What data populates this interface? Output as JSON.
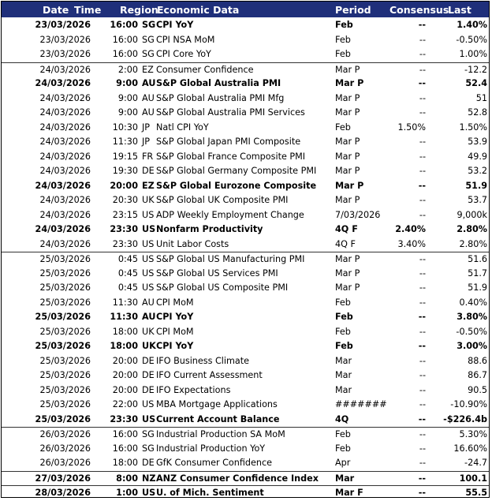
{
  "headers": {
    "date": "Date",
    "time": "Time",
    "region": "Region",
    "desc": "Economic Data",
    "period": "Period",
    "consensus": "Consensus",
    "last": "Last"
  },
  "rows": [
    {
      "date": "23/03/2026",
      "time": "16:00",
      "region": "SG",
      "desc": "CPI YoY",
      "period": "Feb",
      "cons": "--",
      "last": "1.40%",
      "bold": true
    },
    {
      "date": "23/03/2026",
      "time": "16:00",
      "region": "SG",
      "desc": "CPI NSA MoM",
      "period": "Feb",
      "cons": "--",
      "last": "-0.50%",
      "bold": false
    },
    {
      "date": "23/03/2026",
      "time": "16:00",
      "region": "SG",
      "desc": "CPI Core YoY",
      "period": "Feb",
      "cons": "--",
      "last": "1.00%",
      "bold": false
    },
    {
      "date": "24/03/2026",
      "time": "2:00",
      "region": "EZ",
      "desc": "Consumer Confidence",
      "period": "Mar P",
      "cons": "--",
      "last": "-12.2",
      "bold": false
    },
    {
      "date": "24/03/2026",
      "time": "9:00",
      "region": "AU",
      "desc": "S&P Global Australia PMI",
      "period": "Mar P",
      "cons": "--",
      "last": "52.4",
      "bold": true
    },
    {
      "date": "24/03/2026",
      "time": "9:00",
      "region": "AU",
      "desc": "S&P Global Australia PMI Mfg",
      "period": "Mar P",
      "cons": "--",
      "last": "51",
      "bold": false
    },
    {
      "date": "24/03/2026",
      "time": "9:00",
      "region": "AU",
      "desc": "S&P Global Australia PMI Services",
      "period": "Mar P",
      "cons": "--",
      "last": "52.8",
      "bold": false
    },
    {
      "date": "24/03/2026",
      "time": "10:30",
      "region": "JP",
      "desc": "Natl CPI YoY",
      "period": "Feb",
      "cons": "1.50%",
      "last": "1.50%",
      "bold": false
    },
    {
      "date": "24/03/2026",
      "time": "11:30",
      "region": "JP",
      "desc": "S&P Global Japan PMI Composite",
      "period": "Mar P",
      "cons": "--",
      "last": "53.9",
      "bold": false
    },
    {
      "date": "24/03/2026",
      "time": "19:15",
      "region": "FR",
      "desc": "S&P Global France Composite PMI",
      "period": "Mar P",
      "cons": "--",
      "last": "49.9",
      "bold": false
    },
    {
      "date": "24/03/2026",
      "time": "19:30",
      "region": "DE",
      "desc": "S&P Global Germany Composite PMI",
      "period": "Mar P",
      "cons": "--",
      "last": "53.2",
      "bold": false
    },
    {
      "date": "24/03/2026",
      "time": "20:00",
      "region": "EZ",
      "desc": "S&P Global Eurozone Composite",
      "period": "Mar P",
      "cons": "--",
      "last": "51.9",
      "bold": true
    },
    {
      "date": "24/03/2026",
      "time": "20:30",
      "region": "UK",
      "desc": "S&P Global UK Composite PMI",
      "period": "Mar P",
      "cons": "--",
      "last": "53.7",
      "bold": false
    },
    {
      "date": "24/03/2026",
      "time": "23:15",
      "region": "US",
      "desc": "ADP Weekly Employment Change",
      "period": "7/03/2026",
      "cons": "--",
      "last": "9,000k",
      "bold": false
    },
    {
      "date": "24/03/2026",
      "time": "23:30",
      "region": "US",
      "desc": "Nonfarm Productivity",
      "period": "4Q F",
      "cons": "2.40%",
      "last": "2.80%",
      "bold": true
    },
    {
      "date": "24/03/2026",
      "time": "23:30",
      "region": "US",
      "desc": "Unit Labor Costs",
      "period": "4Q F",
      "cons": "3.40%",
      "last": "2.80%",
      "bold": false
    },
    {
      "date": "25/03/2026",
      "time": "0:45",
      "region": "US",
      "desc": "S&P Global US Manufacturing PMI",
      "period": "Mar P",
      "cons": "--",
      "last": "51.6",
      "bold": false
    },
    {
      "date": "25/03/2026",
      "time": "0:45",
      "region": "US",
      "desc": "S&P Global US Services PMI",
      "period": "Mar P",
      "cons": "--",
      "last": "51.7",
      "bold": false
    },
    {
      "date": "25/03/2026",
      "time": "0:45",
      "region": "US",
      "desc": "S&P Global US Composite PMI",
      "period": "Mar P",
      "cons": "--",
      "last": "51.9",
      "bold": false
    },
    {
      "date": "25/03/2026",
      "time": "11:30",
      "region": "AU",
      "desc": "CPI MoM",
      "period": "Feb",
      "cons": "--",
      "last": "0.40%",
      "bold": false
    },
    {
      "date": "25/03/2026",
      "time": "11:30",
      "region": "AU",
      "desc": "CPI YoY",
      "period": "Feb",
      "cons": "--",
      "last": "3.80%",
      "bold": true
    },
    {
      "date": "25/03/2026",
      "time": "18:00",
      "region": "UK",
      "desc": "CPI MoM",
      "period": "Feb",
      "cons": "--",
      "last": "-0.50%",
      "bold": false
    },
    {
      "date": "25/03/2026",
      "time": "18:00",
      "region": "UK",
      "desc": "CPI YoY",
      "period": "Feb",
      "cons": "--",
      "last": "3.00%",
      "bold": true
    },
    {
      "date": "25/03/2026",
      "time": "20:00",
      "region": "DE",
      "desc": "IFO Business Climate",
      "period": "Mar",
      "cons": "--",
      "last": "88.6",
      "bold": false
    },
    {
      "date": "25/03/2026",
      "time": "20:00",
      "region": "DE",
      "desc": "IFO Current Assessment",
      "period": "Mar",
      "cons": "--",
      "last": "86.7",
      "bold": false
    },
    {
      "date": "25/03/2026",
      "time": "20:00",
      "region": "DE",
      "desc": "IFO Expectations",
      "period": "Mar",
      "cons": "--",
      "last": "90.5",
      "bold": false
    },
    {
      "date": "25/03/2026",
      "time": "22:00",
      "region": "US",
      "desc": "MBA Mortgage Applications",
      "period": "#######",
      "cons": "--",
      "last": "-10.90%",
      "bold": false
    },
    {
      "date": "25/03/2026",
      "time": "23:30",
      "region": "US",
      "desc": "Current Account Balance",
      "period": "4Q",
      "cons": "--",
      "last": "-$226.4b",
      "bold": true
    },
    {
      "date": "26/03/2026",
      "time": "16:00",
      "region": "SG",
      "desc": "Industrial Production SA MoM",
      "period": "Feb",
      "cons": "--",
      "last": "5.30%",
      "bold": false
    },
    {
      "date": "26/03/2026",
      "time": "16:00",
      "region": "SG",
      "desc": "Industrial Production YoY",
      "period": "Feb",
      "cons": "--",
      "last": "16.60%",
      "bold": false
    },
    {
      "date": "26/03/2026",
      "time": "18:00",
      "region": "DE",
      "desc": "GfK Consumer Confidence",
      "period": "Apr",
      "cons": "--",
      "last": "-24.7",
      "bold": false
    },
    {
      "date": "27/03/2026",
      "time": "8:00",
      "region": "NZ",
      "desc": "ANZ Consumer Confidence Index",
      "period": "Mar",
      "cons": "--",
      "last": "100.1",
      "bold": true
    },
    {
      "date": "28/03/2026",
      "time": "1:00",
      "region": "US",
      "desc": "U. of Mich. Sentiment",
      "period": "Mar F",
      "cons": "--",
      "last": "55.5",
      "bold": true
    }
  ],
  "colors": {
    "header_bg": "#1f2f7a",
    "header_text": "#ffffff",
    "border": "#333333"
  }
}
